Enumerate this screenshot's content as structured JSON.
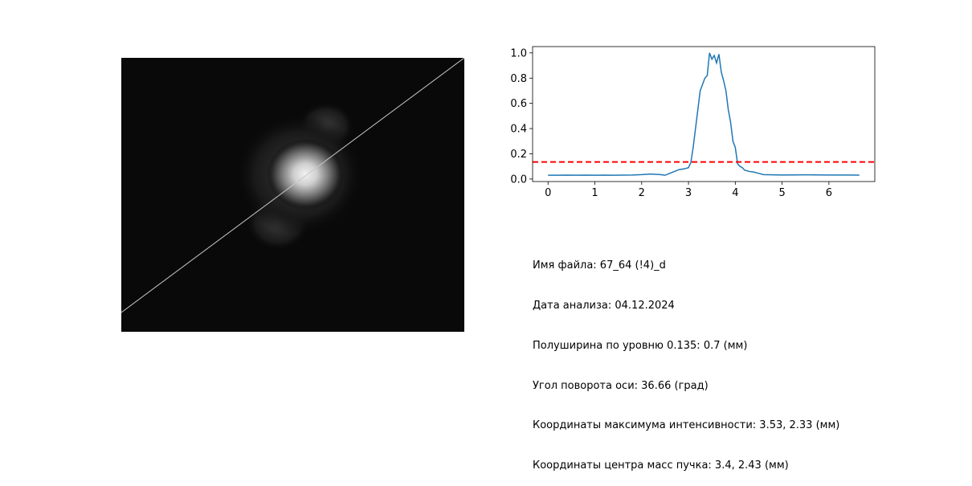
{
  "image_panel": {
    "background_color": "#090909",
    "axis_line_color": "#c8c8c8"
  },
  "chart_data": {
    "type": "line",
    "series": [
      {
        "color": "#1f77b4",
        "x": [
          0,
          0.2,
          0.4,
          0.6,
          0.8,
          1.0,
          1.2,
          1.4,
          1.6,
          1.8,
          2.0,
          2.2,
          2.4,
          2.5,
          2.6,
          2.7,
          2.8,
          2.9,
          3.0,
          3.05,
          3.1,
          3.15,
          3.2,
          3.25,
          3.3,
          3.35,
          3.4,
          3.45,
          3.5,
          3.55,
          3.6,
          3.65,
          3.7,
          3.75,
          3.8,
          3.85,
          3.9,
          3.95,
          4.0,
          4.05,
          4.1,
          4.15,
          4.2,
          4.3,
          4.4,
          4.5,
          4.6,
          4.8,
          5.0,
          5.5,
          6.0,
          6.4,
          6.65
        ],
        "y": [
          0.03,
          0.03,
          0.031,
          0.03,
          0.031,
          0.03,
          0.031,
          0.03,
          0.031,
          0.032,
          0.035,
          0.04,
          0.035,
          0.03,
          0.045,
          0.06,
          0.075,
          0.08,
          0.09,
          0.13,
          0.25,
          0.4,
          0.55,
          0.7,
          0.75,
          0.8,
          0.82,
          1.0,
          0.95,
          0.98,
          0.92,
          0.99,
          0.85,
          0.78,
          0.7,
          0.55,
          0.45,
          0.3,
          0.25,
          0.12,
          0.1,
          0.09,
          0.07,
          0.06,
          0.055,
          0.045,
          0.035,
          0.033,
          0.032,
          0.033,
          0.032,
          0.032,
          0.031
        ]
      }
    ],
    "threshold": {
      "y": 0.135,
      "color": "#ff0000"
    },
    "xlim": [
      -0.33,
      6.98
    ],
    "ylim": [
      -0.02,
      1.05
    ],
    "xticks": [
      "0",
      "1",
      "2",
      "3",
      "4",
      "5",
      "6"
    ],
    "yticks": [
      "0.0",
      "0.2",
      "0.4",
      "0.6",
      "0.8",
      "1.0"
    ],
    "grid": false
  },
  "info": {
    "file_name": "Имя файла: 67_64 (!4)_d",
    "analysis_date": "Дата анализа: 04.12.2024",
    "fwhm": "Полуширина по уровню 0.135: 0.7 (мм)",
    "rotation_angle": "Угол поворота оси: 36.66 (град)",
    "max_coords": "Координаты максимума интенсивности: 3.53, 2.33 (мм)",
    "center_of_mass": "Координаты центра масс пучка: 3.4, 2.43 (мм)"
  }
}
